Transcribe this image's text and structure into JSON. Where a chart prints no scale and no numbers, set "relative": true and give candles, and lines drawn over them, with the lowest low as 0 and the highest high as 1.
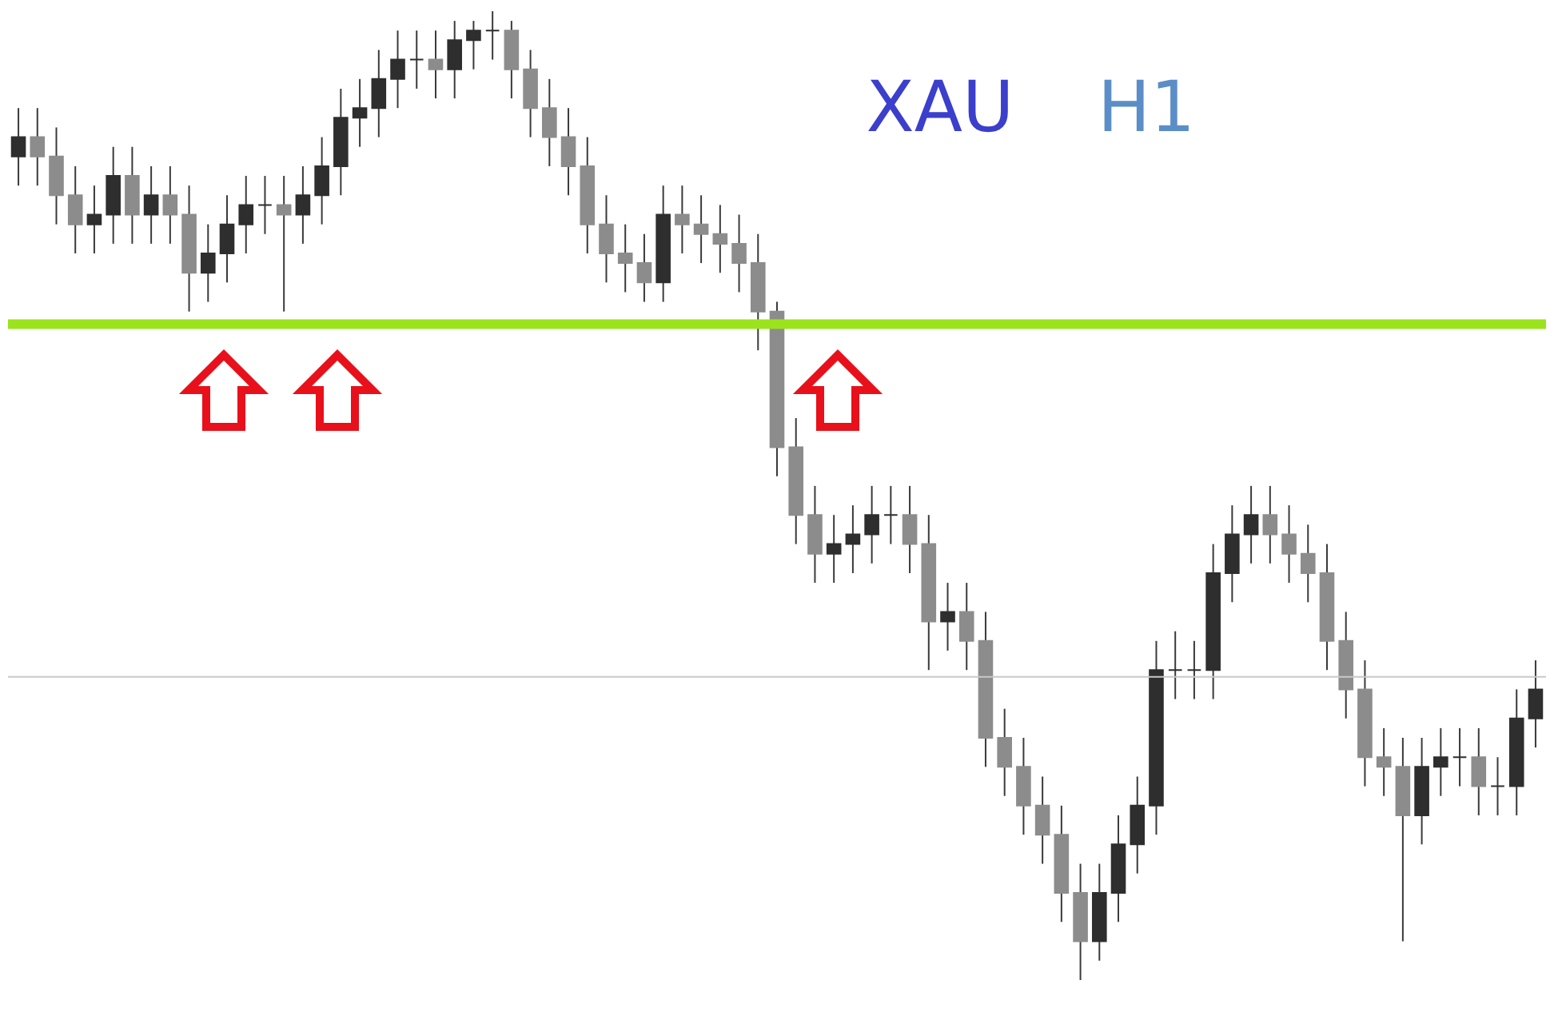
{
  "chart_data": {
    "type": "candlestick",
    "relative": true,
    "categories": [
      null,
      null,
      null,
      null,
      null,
      null,
      null,
      null,
      null,
      null,
      null,
      null,
      null,
      null,
      null,
      null,
      null,
      null,
      null,
      null,
      null,
      null,
      null,
      null,
      null,
      null,
      null,
      null,
      null,
      null,
      null,
      null,
      null,
      null,
      null,
      null,
      null,
      null,
      null,
      null,
      null,
      null,
      null,
      null,
      null,
      null,
      null,
      null,
      null,
      null,
      null,
      null,
      null,
      null,
      null,
      null,
      null,
      null,
      null,
      null,
      null,
      null,
      null,
      null,
      null,
      null,
      null,
      null,
      null,
      null,
      null,
      null,
      null,
      null,
      null,
      null,
      null,
      null,
      null,
      null,
      null
    ],
    "ohlc": [
      [
        0.85,
        0.9,
        0.82,
        0.87
      ],
      [
        0.87,
        0.9,
        0.82,
        0.85
      ],
      [
        0.85,
        0.88,
        0.78,
        0.81
      ],
      [
        0.81,
        0.84,
        0.75,
        0.78
      ],
      [
        0.78,
        0.82,
        0.75,
        0.79
      ],
      [
        0.79,
        0.86,
        0.76,
        0.83
      ],
      [
        0.83,
        0.86,
        0.76,
        0.79
      ],
      [
        0.79,
        0.84,
        0.76,
        0.81
      ],
      [
        0.81,
        0.84,
        0.76,
        0.79
      ],
      [
        0.79,
        0.82,
        0.69,
        0.73
      ],
      [
        0.73,
        0.78,
        0.7,
        0.75
      ],
      [
        0.75,
        0.81,
        0.72,
        0.78
      ],
      [
        0.78,
        0.83,
        0.75,
        0.8
      ],
      [
        0.8,
        0.83,
        0.77,
        0.8
      ],
      [
        0.8,
        0.83,
        0.69,
        0.79
      ],
      [
        0.79,
        0.84,
        0.76,
        0.81
      ],
      [
        0.81,
        0.87,
        0.78,
        0.84
      ],
      [
        0.84,
        0.92,
        0.81,
        0.89
      ],
      [
        0.89,
        0.93,
        0.86,
        0.9
      ],
      [
        0.9,
        0.96,
        0.87,
        0.93
      ],
      [
        0.93,
        0.98,
        0.9,
        0.95
      ],
      [
        0.95,
        0.98,
        0.92,
        0.95
      ],
      [
        0.95,
        0.98,
        0.91,
        0.94
      ],
      [
        0.94,
        0.99,
        0.91,
        0.97
      ],
      [
        0.97,
        0.99,
        0.94,
        0.98
      ],
      [
        0.98,
        1.0,
        0.95,
        0.98
      ],
      [
        0.98,
        0.99,
        0.91,
        0.94
      ],
      [
        0.94,
        0.96,
        0.87,
        0.9
      ],
      [
        0.9,
        0.93,
        0.84,
        0.87
      ],
      [
        0.87,
        0.9,
        0.81,
        0.84
      ],
      [
        0.84,
        0.87,
        0.75,
        0.78
      ],
      [
        0.78,
        0.81,
        0.72,
        0.75
      ],
      [
        0.75,
        0.78,
        0.71,
        0.74
      ],
      [
        0.74,
        0.77,
        0.7,
        0.72
      ],
      [
        0.72,
        0.82,
        0.7,
        0.79
      ],
      [
        0.79,
        0.82,
        0.75,
        0.78
      ],
      [
        0.78,
        0.81,
        0.74,
        0.77
      ],
      [
        0.77,
        0.8,
        0.73,
        0.76
      ],
      [
        0.76,
        0.79,
        0.71,
        0.74
      ],
      [
        0.74,
        0.77,
        0.65,
        0.69
      ],
      [
        0.69,
        0.7,
        0.52,
        0.55
      ],
      [
        0.55,
        0.58,
        0.45,
        0.48
      ],
      [
        0.48,
        0.51,
        0.41,
        0.44
      ],
      [
        0.44,
        0.48,
        0.41,
        0.45
      ],
      [
        0.45,
        0.49,
        0.42,
        0.46
      ],
      [
        0.46,
        0.51,
        0.43,
        0.48
      ],
      [
        0.48,
        0.51,
        0.45,
        0.48
      ],
      [
        0.48,
        0.51,
        0.42,
        0.45
      ],
      [
        0.45,
        0.48,
        0.32,
        0.37
      ],
      [
        0.37,
        0.41,
        0.34,
        0.38
      ],
      [
        0.38,
        0.41,
        0.32,
        0.35
      ],
      [
        0.35,
        0.38,
        0.22,
        0.25
      ],
      [
        0.25,
        0.28,
        0.19,
        0.22
      ],
      [
        0.22,
        0.25,
        0.15,
        0.18
      ],
      [
        0.18,
        0.21,
        0.12,
        0.15
      ],
      [
        0.15,
        0.18,
        0.06,
        0.09
      ],
      [
        0.09,
        0.12,
        0.0,
        0.04
      ],
      [
        0.04,
        0.12,
        0.02,
        0.09
      ],
      [
        0.09,
        0.17,
        0.06,
        0.14
      ],
      [
        0.14,
        0.21,
        0.11,
        0.18
      ],
      [
        0.18,
        0.35,
        0.15,
        0.32
      ],
      [
        0.32,
        0.36,
        0.29,
        0.32
      ],
      [
        0.32,
        0.35,
        0.29,
        0.32
      ],
      [
        0.32,
        0.45,
        0.29,
        0.42
      ],
      [
        0.42,
        0.49,
        0.39,
        0.46
      ],
      [
        0.46,
        0.51,
        0.43,
        0.48
      ],
      [
        0.48,
        0.51,
        0.43,
        0.46
      ],
      [
        0.46,
        0.49,
        0.41,
        0.44
      ],
      [
        0.44,
        0.47,
        0.39,
        0.42
      ],
      [
        0.42,
        0.45,
        0.32,
        0.35
      ],
      [
        0.35,
        0.38,
        0.27,
        0.3
      ],
      [
        0.3,
        0.33,
        0.2,
        0.23
      ],
      [
        0.23,
        0.26,
        0.19,
        0.22
      ],
      [
        0.22,
        0.25,
        0.04,
        0.17
      ],
      [
        0.17,
        0.25,
        0.14,
        0.22
      ],
      [
        0.22,
        0.26,
        0.19,
        0.23
      ],
      [
        0.23,
        0.26,
        0.2,
        0.23
      ],
      [
        0.23,
        0.26,
        0.17,
        0.2
      ],
      [
        0.2,
        0.23,
        0.17,
        0.2
      ],
      [
        0.2,
        0.3,
        0.17,
        0.27
      ],
      [
        0.27,
        0.33,
        0.24,
        0.3
      ]
    ],
    "ref_lines": [
      {
        "axis": "y",
        "value": 0.677,
        "color": "#9be31c"
      },
      {
        "axis": "y",
        "value": 0.313,
        "color": "#c8c8c8"
      }
    ],
    "annotations": [
      "XAU",
      "H1"
    ]
  }
}
